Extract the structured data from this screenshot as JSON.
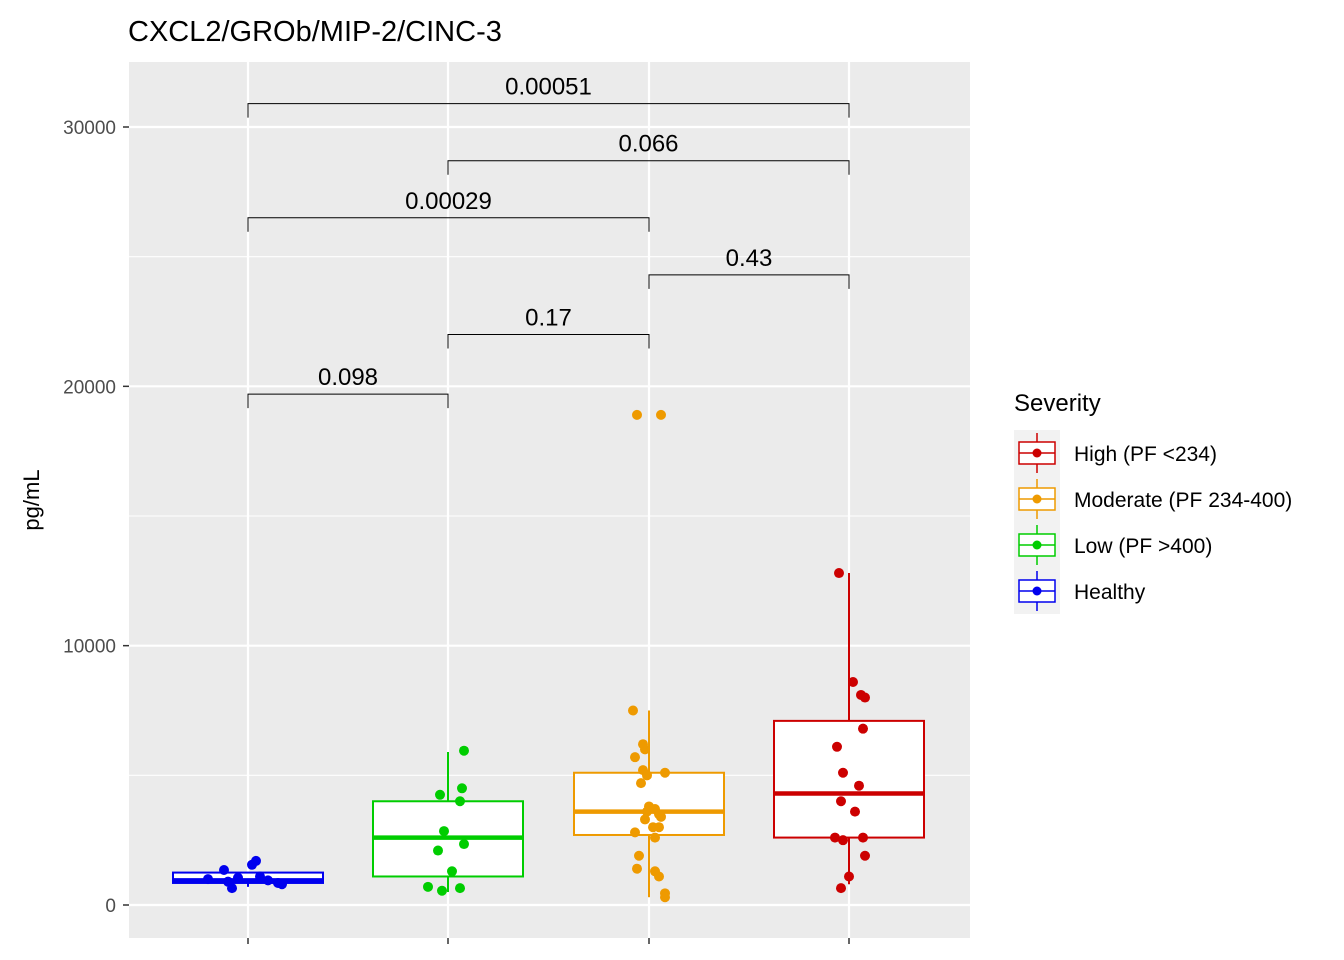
{
  "chart_data": {
    "type": "box",
    "title": "CXCL2/GROb/MIP-2/CINC-3",
    "xlabel": "",
    "ylabel": "pg/mL",
    "ylim": [
      -1200,
      33000
    ],
    "y_ticks": [
      0,
      10000,
      20000,
      30000
    ],
    "y_tick_labels": [
      "0",
      "10000",
      "20000",
      "30000"
    ],
    "grid": true,
    "legend": {
      "title": "Severity",
      "position": "right",
      "entries": [
        {
          "label": "High (PF <234)",
          "color": "#cc0000"
        },
        {
          "label": "Moderate (PF 234-400)",
          "color": "#ee9a00"
        },
        {
          "label": "Low (PF >400)",
          "color": "#00cd00"
        },
        {
          "label": "Healthy",
          "color": "#0000ee"
        }
      ]
    },
    "groups": [
      {
        "name": "Healthy",
        "color": "#0000ee",
        "box": {
          "lower_whisker": 700,
          "q1": 850,
          "median": 950,
          "q3": 1250,
          "upper_whisker": 1250
        },
        "points": [
          [
            -0.12,
            1350
          ],
          [
            -0.05,
            1050
          ],
          [
            0.02,
            1550
          ],
          [
            0.04,
            1700
          ],
          [
            0.06,
            1100
          ],
          [
            0.1,
            950
          ],
          [
            0.15,
            850
          ],
          [
            0.17,
            800
          ],
          [
            -0.1,
            900
          ],
          [
            -0.2,
            1000
          ],
          [
            -0.08,
            650
          ]
        ]
      },
      {
        "name": "Low (PF >400)",
        "color": "#00cd00",
        "box": {
          "lower_whisker": 500,
          "q1": 1100,
          "median": 2600,
          "q3": 4000,
          "upper_whisker": 5900
        },
        "points": [
          [
            0.08,
            5950
          ],
          [
            0.07,
            4500
          ],
          [
            -0.04,
            4250
          ],
          [
            0.06,
            4000
          ],
          [
            -0.02,
            2850
          ],
          [
            0.08,
            2350
          ],
          [
            -0.05,
            2100
          ],
          [
            0.02,
            1300
          ],
          [
            -0.1,
            700
          ],
          [
            0.06,
            650
          ],
          [
            -0.03,
            550
          ]
        ]
      },
      {
        "name": "Moderate (PF 234-400)",
        "color": "#ee9a00",
        "box": {
          "lower_whisker": 300,
          "q1": 2700,
          "median": 3600,
          "q3": 5100,
          "upper_whisker": 7500
        },
        "points": [
          [
            -0.06,
            18900
          ],
          [
            0.06,
            18900
          ],
          [
            -0.08,
            7500
          ],
          [
            -0.03,
            6200
          ],
          [
            -0.02,
            6000
          ],
          [
            -0.07,
            5700
          ],
          [
            -0.03,
            5200
          ],
          [
            0.08,
            5100
          ],
          [
            -0.01,
            5000
          ],
          [
            -0.04,
            4700
          ],
          [
            0.0,
            3800
          ],
          [
            0.03,
            3700
          ],
          [
            -0.01,
            3600
          ],
          [
            0.05,
            3500
          ],
          [
            0.06,
            3400
          ],
          [
            -0.02,
            3300
          ],
          [
            0.02,
            3000
          ],
          [
            0.05,
            3000
          ],
          [
            -0.07,
            2800
          ],
          [
            0.03,
            2600
          ],
          [
            -0.05,
            1900
          ],
          [
            -0.06,
            1400
          ],
          [
            0.03,
            1300
          ],
          [
            0.05,
            1100
          ],
          [
            0.08,
            450
          ],
          [
            0.08,
            300
          ]
        ]
      },
      {
        "name": "High (PF <234)",
        "color": "#cc0000",
        "box": {
          "lower_whisker": 800,
          "q1": 2600,
          "median": 4300,
          "q3": 7100,
          "upper_whisker": 12800
        },
        "points": [
          [
            -0.05,
            12800
          ],
          [
            0.02,
            8600
          ],
          [
            0.06,
            8100
          ],
          [
            0.08,
            8000
          ],
          [
            0.07,
            6800
          ],
          [
            -0.06,
            6100
          ],
          [
            -0.03,
            5100
          ],
          [
            0.05,
            4600
          ],
          [
            -0.04,
            4000
          ],
          [
            0.03,
            3600
          ],
          [
            -0.07,
            2600
          ],
          [
            -0.03,
            2500
          ],
          [
            0.07,
            2600
          ],
          [
            0.08,
            1900
          ],
          [
            0.0,
            1100
          ],
          [
            -0.04,
            650
          ]
        ]
      }
    ],
    "comparisons": [
      {
        "from": 0,
        "to": 1,
        "label": "0.098",
        "y": 19700
      },
      {
        "from": 1,
        "to": 2,
        "label": "0.17",
        "y": 22000
      },
      {
        "from": 2,
        "to": 3,
        "label": "0.43",
        "y": 24300
      },
      {
        "from": 0,
        "to": 2,
        "label": "0.00029",
        "y": 26500
      },
      {
        "from": 1,
        "to": 3,
        "label": "0.066",
        "y": 28700
      },
      {
        "from": 0,
        "to": 3,
        "label": "0.00051",
        "y": 30900
      }
    ]
  }
}
